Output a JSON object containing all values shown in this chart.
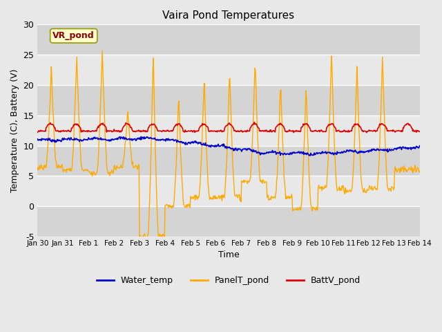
{
  "title": "Vaira Pond Temperatures",
  "xlabel": "Time",
  "ylabel": "Temperature (C), Battery (V)",
  "ylim": [
    -5,
    30
  ],
  "yticks": [
    -5,
    0,
    5,
    10,
    15,
    20,
    25,
    30
  ],
  "xtick_labels": [
    "Jan 30",
    "Jan 31",
    "Feb 1",
    "Feb 2",
    "Feb 3",
    "Feb 4",
    "Feb 5",
    "Feb 6",
    "Feb 7",
    "Feb 8",
    "Feb 9",
    "Feb 10",
    "Feb 11",
    "Feb 12",
    "Feb 13",
    "Feb 14"
  ],
  "water_color": "#0000cc",
  "panel_color": "#ffaa00",
  "batt_color": "#dd0000",
  "annotation_text": "VR_pond",
  "bg_color": "#e8e8e8",
  "plot_bg_color": "#e8e8e8",
  "grid_color": "#ffffff",
  "legend_labels": [
    "Water_temp",
    "PanelT_pond",
    "BattV_pond"
  ],
  "band_colors": [
    "#d8d8d8",
    "#e8e8e8"
  ],
  "n_days": 15
}
